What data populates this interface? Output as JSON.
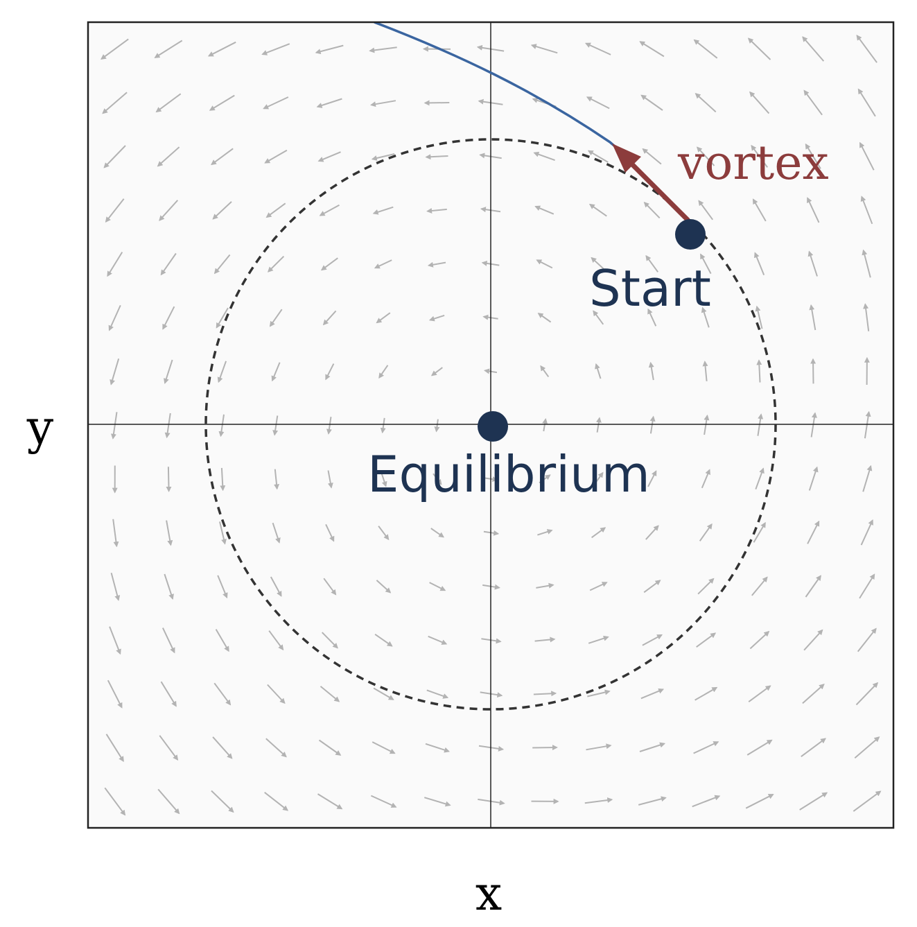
{
  "labels": {
    "x_axis": "x",
    "y_axis": "y",
    "equilibrium": "Equilibrium",
    "start": "Start",
    "vortex": "vortex"
  },
  "colors": {
    "background": "#ffffff",
    "plot_background": "#fafafa",
    "field_arrow": "#b3b3b3",
    "trajectory": "#3a65a0",
    "vortex_arrow": "#8c3c3c",
    "point": "#1e3352",
    "dashed_circle": "#333333",
    "axes": "#222222"
  },
  "field": {
    "description_free": true,
    "vx_from": "-y + 0.15*x",
    "vy_from": "x + 0.15*y"
  }
}
